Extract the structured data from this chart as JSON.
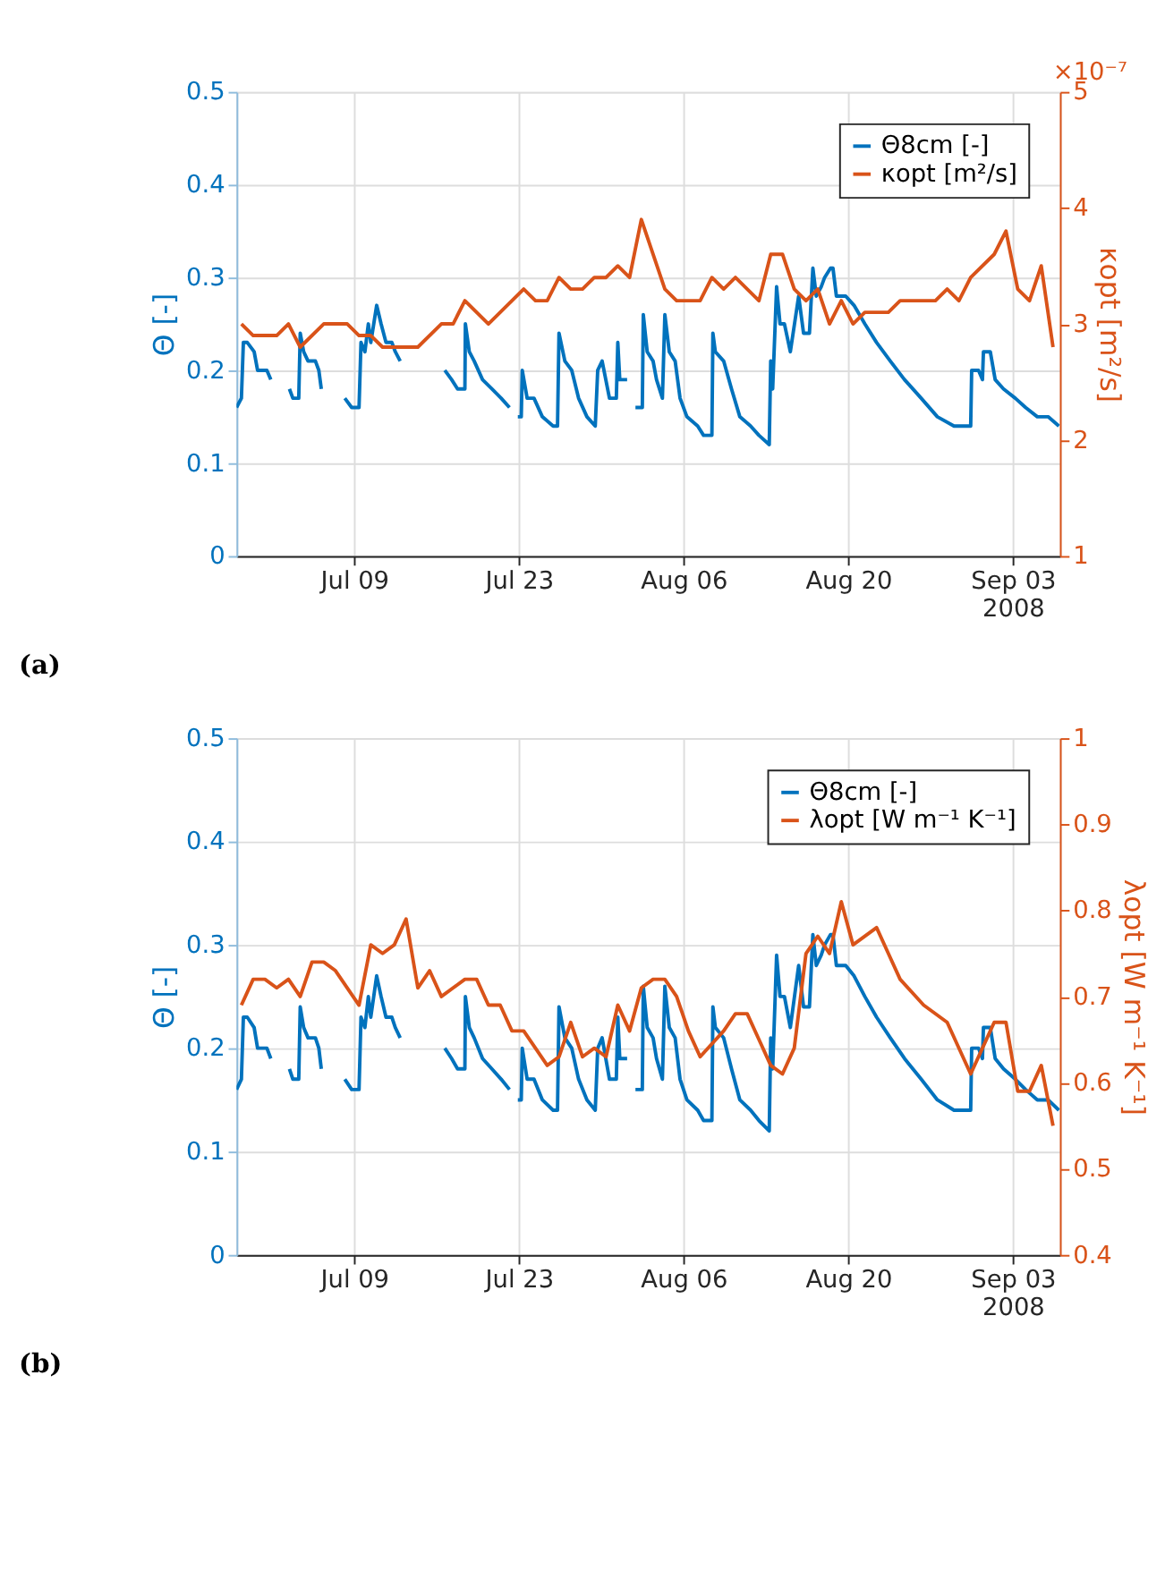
{
  "chart_data": [
    {
      "type": "line",
      "title": "(a)",
      "ylabel": "Θ [-]",
      "y2label": "κopt [m²/s]",
      "annotations": [
        "×10⁻⁷"
      ],
      "xlim": [
        "2008-06-29",
        "2008-09-07"
      ],
      "xticks": [
        {
          "value": "2008-07-09",
          "label": "Jul 09"
        },
        {
          "value": "2008-07-23",
          "label": "Jul 23"
        },
        {
          "value": "2008-08-06",
          "label": "Aug 06"
        },
        {
          "value": "2008-08-20",
          "label": "Aug 20"
        },
        {
          "value": "2008-09-03",
          "label": "Sep 03\n2008"
        }
      ],
      "ylim": [
        0,
        0.5
      ],
      "yticks": [
        0,
        0.1,
        0.2,
        0.3,
        0.4,
        0.5
      ],
      "y2lim": [
        1,
        5
      ],
      "y2ticks": [
        1,
        2,
        3,
        4,
        5
      ],
      "grid": true,
      "legend": "top right",
      "series": [
        {
          "name": "Θ8cm [-]",
          "color": "#0072bd",
          "x": [
            "2008-06-29T00:00",
            "2008-06-29T10:00",
            "2008-06-29T14:00",
            "2008-06-29T22:00",
            "2008-06-30T12:00",
            "2008-06-30T19:00",
            "2008-07-01T14:00",
            "2008-07-01T22:00",
            "2008-07-02T12:00",
            "2008-07-03T12:00",
            "2008-07-03T19:00",
            "2008-07-04T07:00",
            "2008-07-04T10:00",
            "2008-07-04T17:00",
            "2008-07-05T02:00",
            "2008-07-05T17:00",
            "2008-07-06T00:00",
            "2008-07-06T05:00",
            "2008-07-07T00:00",
            "2008-07-08T05:00",
            "2008-07-08T19:00",
            "2008-07-09T10:00",
            "2008-07-09T14:00",
            "2008-07-09T22:00",
            "2008-07-10T05:00",
            "2008-07-10T10:00",
            "2008-07-10T22:00",
            "2008-07-11T07:00",
            "2008-07-11T17:00",
            "2008-07-12T05:00",
            "2008-07-12T12:00",
            "2008-07-12T22:00",
            "2008-07-14T00:00",
            "2008-07-16T17:00",
            "2008-07-17T07:00",
            "2008-07-17T19:00",
            "2008-07-18T10:00",
            "2008-07-18T11:00",
            "2008-07-18T19:00",
            "2008-07-19T05:00",
            "2008-07-19T22:00",
            "2008-07-20T17:00",
            "2008-07-21T12:00",
            "2008-07-22T05:00",
            "2008-07-22T12:00",
            "2008-07-22T22:00",
            "2008-07-23T05:00",
            "2008-07-23T07:00",
            "2008-07-23T17:00",
            "2008-07-24T07:00",
            "2008-07-25T00:00",
            "2008-07-25T22:00",
            "2008-07-26T07:00",
            "2008-07-26T10:00",
            "2008-07-26T22:00",
            "2008-07-27T12:00",
            "2008-07-28T02:00",
            "2008-07-28T19:00",
            "2008-07-29T12:00",
            "2008-07-29T17:00",
            "2008-07-30T02:00",
            "2008-07-30T17:00",
            "2008-07-31T07:00",
            "2008-07-31T10:00",
            "2008-07-31T14:00",
            "2008-08-01T05:00",
            "2008-08-01T12:00",
            "2008-08-01T22:00",
            "2008-08-02T12:00",
            "2008-08-02T14:00",
            "2008-08-02T22:00",
            "2008-08-03T10:00",
            "2008-08-03T17:00",
            "2008-08-04T05:00",
            "2008-08-04T10:00",
            "2008-08-04T19:00",
            "2008-08-05T07:00",
            "2008-08-05T17:00",
            "2008-08-06T07:00",
            "2008-08-07T05:00",
            "2008-08-07T17:00",
            "2008-08-08T10:00",
            "2008-08-08T12:00",
            "2008-08-08T17:00",
            "2008-08-09T10:00",
            "2008-08-10T02:00",
            "2008-08-10T19:00",
            "2008-08-11T17:00",
            "2008-08-12T10:00",
            "2008-08-13T07:00",
            "2008-08-13T10:00",
            "2008-08-13T14:00",
            "2008-08-13T22:00",
            "2008-08-14T05:00",
            "2008-08-14T14:00",
            "2008-08-15T02:00",
            "2008-08-15T19:00",
            "2008-08-16T05:00",
            "2008-08-16T17:00",
            "2008-08-17T00:00",
            "2008-08-17T07:00",
            "2008-08-17T17:00",
            "2008-08-18T00:00",
            "2008-08-18T12:00",
            "2008-08-18T17:00",
            "2008-08-19T00:00",
            "2008-08-19T19:00",
            "2008-08-20T12:00",
            "2008-08-21T10:00",
            "2008-08-22T10:00",
            "2008-08-23T14:00",
            "2008-08-24T19:00",
            "2008-08-26T05:00",
            "2008-08-27T14:00",
            "2008-08-29T00:00",
            "2008-08-30T10:00",
            "2008-08-30T12:00",
            "2008-08-31T02:00",
            "2008-08-31T10:00",
            "2008-08-31T12:00",
            "2008-09-01T02:00",
            "2008-09-01T12:00",
            "2008-09-02T05:00",
            "2008-09-03T05:00",
            "2008-09-04T02:00",
            "2008-09-05T02:00",
            "2008-09-06T00:00",
            "2008-09-06T22:00"
          ],
          "values": [
            0.16,
            0.17,
            0.23,
            0.23,
            0.22,
            0.2,
            0.2,
            0.19,
            null,
            0.18,
            0.17,
            0.17,
            0.24,
            0.22,
            0.21,
            0.21,
            0.2,
            0.18,
            null,
            0.17,
            0.16,
            0.16,
            0.23,
            0.22,
            0.25,
            0.23,
            0.27,
            0.25,
            0.23,
            0.23,
            0.22,
            0.21,
            null,
            0.2,
            0.19,
            0.18,
            0.18,
            0.25,
            0.22,
            0.21,
            0.19,
            0.18,
            0.17,
            0.16,
            null,
            0.15,
            0.15,
            0.2,
            0.17,
            0.17,
            0.15,
            0.14,
            0.14,
            0.24,
            0.21,
            0.2,
            0.17,
            0.15,
            0.14,
            0.2,
            0.21,
            0.17,
            0.17,
            0.23,
            0.19,
            0.19,
            null,
            0.16,
            0.16,
            0.26,
            0.22,
            0.21,
            0.19,
            0.17,
            0.26,
            0.22,
            0.21,
            0.17,
            0.15,
            0.14,
            0.13,
            0.13,
            0.24,
            0.22,
            0.21,
            0.18,
            0.15,
            0.14,
            0.13,
            0.12,
            0.21,
            0.18,
            0.29,
            0.25,
            0.25,
            0.22,
            0.28,
            0.24,
            0.24,
            0.31,
            0.28,
            0.29,
            0.3,
            0.31,
            0.31,
            0.28,
            0.28,
            0.27,
            0.25,
            0.23,
            0.21,
            0.19,
            0.17,
            0.15,
            0.14,
            0.14,
            0.2,
            0.2,
            0.19,
            0.22,
            0.22,
            0.19,
            0.18,
            0.17,
            0.16,
            0.15,
            0.15,
            0.14
          ]
        },
        {
          "name": "κopt [m²/s]",
          "color": "#d95319",
          "axis": "y2",
          "x": [
            "2008-06-29T10:00",
            "2008-06-30T10:00",
            "2008-07-02T10:00",
            "2008-07-03T10:00",
            "2008-07-04T10:00",
            "2008-07-06T10:00",
            "2008-07-08T10:00",
            "2008-07-09T10:00",
            "2008-07-10T10:00",
            "2008-07-11T10:00",
            "2008-07-14T10:00",
            "2008-07-16T10:00",
            "2008-07-17T10:00",
            "2008-07-18T10:00",
            "2008-07-20T10:00",
            "2008-07-23T10:00",
            "2008-07-24T10:00",
            "2008-07-25T10:00",
            "2008-07-26T10:00",
            "2008-07-27T10:00",
            "2008-07-28T10:00",
            "2008-07-29T10:00",
            "2008-07-30T10:00",
            "2008-07-31T10:00",
            "2008-08-01T10:00",
            "2008-08-02T10:00",
            "2008-08-04T10:00",
            "2008-08-05T10:00",
            "2008-08-07T10:00",
            "2008-08-08T10:00",
            "2008-08-09T10:00",
            "2008-08-10T10:00",
            "2008-08-12T10:00",
            "2008-08-13T10:00",
            "2008-08-14T10:00",
            "2008-08-15T10:00",
            "2008-08-16T10:00",
            "2008-08-17T10:00",
            "2008-08-18T10:00",
            "2008-08-19T10:00",
            "2008-08-20T10:00",
            "2008-08-21T10:00",
            "2008-08-23T10:00",
            "2008-08-24T10:00",
            "2008-08-27T10:00",
            "2008-08-28T10:00",
            "2008-08-29T10:00",
            "2008-08-30T10:00",
            "2008-09-01T10:00",
            "2008-09-02T10:00",
            "2008-09-03T10:00",
            "2008-09-04T10:00",
            "2008-09-05T10:00",
            "2008-09-06T10:00"
          ],
          "values": [
            3.0,
            2.9,
            2.9,
            3.0,
            2.8,
            3.0,
            3.0,
            2.9,
            2.9,
            2.8,
            2.8,
            3.0,
            3.0,
            3.2,
            3.0,
            3.3,
            3.2,
            3.2,
            3.4,
            3.3,
            3.3,
            3.4,
            3.4,
            3.5,
            3.4,
            3.9,
            3.3,
            3.2,
            3.2,
            3.4,
            3.3,
            3.4,
            3.2,
            3.6,
            3.6,
            3.3,
            3.2,
            3.3,
            3.0,
            3.2,
            3.0,
            3.1,
            3.1,
            3.2,
            3.2,
            3.3,
            3.2,
            3.4,
            3.6,
            3.8,
            3.3,
            3.2,
            3.5,
            2.8
          ]
        }
      ]
    },
    {
      "type": "line",
      "title": "(b)",
      "ylabel": "Θ [-]",
      "y2label": "λopt [W m⁻¹ K⁻¹]",
      "xlim": [
        "2008-06-29",
        "2008-09-07"
      ],
      "xticks": [
        {
          "value": "2008-07-09",
          "label": "Jul 09"
        },
        {
          "value": "2008-07-23",
          "label": "Jul 23"
        },
        {
          "value": "2008-08-06",
          "label": "Aug 06"
        },
        {
          "value": "2008-08-20",
          "label": "Aug 20"
        },
        {
          "value": "2008-09-03",
          "label": "Sep 03\n2008"
        }
      ],
      "ylim": [
        0,
        0.5
      ],
      "yticks": [
        0,
        0.1,
        0.2,
        0.3,
        0.4,
        0.5
      ],
      "y2lim": [
        0.4,
        1
      ],
      "y2ticks": [
        0.4,
        0.5,
        0.6,
        0.7,
        0.8,
        0.9,
        1
      ],
      "grid": true,
      "legend": "top right",
      "series": [
        {
          "name": "Θ8cm [-]",
          "color": "#0072bd",
          "x": [
            "2008-06-29T00:00",
            "2008-06-29T10:00",
            "2008-06-29T14:00",
            "2008-06-29T22:00",
            "2008-06-30T12:00",
            "2008-06-30T19:00",
            "2008-07-01T14:00",
            "2008-07-01T22:00",
            "2008-07-02T12:00",
            "2008-07-03T12:00",
            "2008-07-03T19:00",
            "2008-07-04T07:00",
            "2008-07-04T10:00",
            "2008-07-04T17:00",
            "2008-07-05T02:00",
            "2008-07-05T17:00",
            "2008-07-06T00:00",
            "2008-07-06T05:00",
            "2008-07-07T00:00",
            "2008-07-08T05:00",
            "2008-07-08T19:00",
            "2008-07-09T10:00",
            "2008-07-09T14:00",
            "2008-07-09T22:00",
            "2008-07-10T05:00",
            "2008-07-10T10:00",
            "2008-07-10T22:00",
            "2008-07-11T07:00",
            "2008-07-11T17:00",
            "2008-07-12T05:00",
            "2008-07-12T12:00",
            "2008-07-12T22:00",
            "2008-07-14T00:00",
            "2008-07-16T17:00",
            "2008-07-17T07:00",
            "2008-07-17T19:00",
            "2008-07-18T10:00",
            "2008-07-18T11:00",
            "2008-07-18T19:00",
            "2008-07-19T05:00",
            "2008-07-19T22:00",
            "2008-07-20T17:00",
            "2008-07-21T12:00",
            "2008-07-22T05:00",
            "2008-07-22T12:00",
            "2008-07-22T22:00",
            "2008-07-23T05:00",
            "2008-07-23T07:00",
            "2008-07-23T17:00",
            "2008-07-24T07:00",
            "2008-07-25T00:00",
            "2008-07-25T22:00",
            "2008-07-26T07:00",
            "2008-07-26T10:00",
            "2008-07-26T22:00",
            "2008-07-27T12:00",
            "2008-07-28T02:00",
            "2008-07-28T19:00",
            "2008-07-29T12:00",
            "2008-07-29T17:00",
            "2008-07-30T02:00",
            "2008-07-30T17:00",
            "2008-07-31T07:00",
            "2008-07-31T10:00",
            "2008-07-31T14:00",
            "2008-08-01T05:00",
            "2008-08-01T12:00",
            "2008-08-01T22:00",
            "2008-08-02T12:00",
            "2008-08-02T14:00",
            "2008-08-02T22:00",
            "2008-08-03T10:00",
            "2008-08-03T17:00",
            "2008-08-04T05:00",
            "2008-08-04T10:00",
            "2008-08-04T19:00",
            "2008-08-05T07:00",
            "2008-08-05T17:00",
            "2008-08-06T07:00",
            "2008-08-07T05:00",
            "2008-08-07T17:00",
            "2008-08-08T10:00",
            "2008-08-08T12:00",
            "2008-08-08T17:00",
            "2008-08-09T10:00",
            "2008-08-10T02:00",
            "2008-08-10T19:00",
            "2008-08-11T17:00",
            "2008-08-12T10:00",
            "2008-08-13T07:00",
            "2008-08-13T10:00",
            "2008-08-13T14:00",
            "2008-08-13T22:00",
            "2008-08-14T05:00",
            "2008-08-14T14:00",
            "2008-08-15T02:00",
            "2008-08-15T19:00",
            "2008-08-16T05:00",
            "2008-08-16T17:00",
            "2008-08-17T00:00",
            "2008-08-17T07:00",
            "2008-08-17T17:00",
            "2008-08-18T00:00",
            "2008-08-18T12:00",
            "2008-08-18T17:00",
            "2008-08-19T00:00",
            "2008-08-19T19:00",
            "2008-08-20T12:00",
            "2008-08-21T10:00",
            "2008-08-22T10:00",
            "2008-08-23T14:00",
            "2008-08-24T19:00",
            "2008-08-26T05:00",
            "2008-08-27T14:00",
            "2008-08-29T00:00",
            "2008-08-30T10:00",
            "2008-08-30T12:00",
            "2008-08-31T02:00",
            "2008-08-31T10:00",
            "2008-08-31T12:00",
            "2008-09-01T02:00",
            "2008-09-01T12:00",
            "2008-09-02T05:00",
            "2008-09-03T05:00",
            "2008-09-04T02:00",
            "2008-09-05T02:00",
            "2008-09-06T00:00",
            "2008-09-06T22:00"
          ],
          "values": [
            0.16,
            0.17,
            0.23,
            0.23,
            0.22,
            0.2,
            0.2,
            0.19,
            null,
            0.18,
            0.17,
            0.17,
            0.24,
            0.22,
            0.21,
            0.21,
            0.2,
            0.18,
            null,
            0.17,
            0.16,
            0.16,
            0.23,
            0.22,
            0.25,
            0.23,
            0.27,
            0.25,
            0.23,
            0.23,
            0.22,
            0.21,
            null,
            0.2,
            0.19,
            0.18,
            0.18,
            0.25,
            0.22,
            0.21,
            0.19,
            0.18,
            0.17,
            0.16,
            null,
            0.15,
            0.15,
            0.2,
            0.17,
            0.17,
            0.15,
            0.14,
            0.14,
            0.24,
            0.21,
            0.2,
            0.17,
            0.15,
            0.14,
            0.2,
            0.21,
            0.17,
            0.17,
            0.23,
            0.19,
            0.19,
            null,
            0.16,
            0.16,
            0.26,
            0.22,
            0.21,
            0.19,
            0.17,
            0.26,
            0.22,
            0.21,
            0.17,
            0.15,
            0.14,
            0.13,
            0.13,
            0.24,
            0.22,
            0.21,
            0.18,
            0.15,
            0.14,
            0.13,
            0.12,
            0.21,
            0.18,
            0.29,
            0.25,
            0.25,
            0.22,
            0.28,
            0.24,
            0.24,
            0.31,
            0.28,
            0.29,
            0.3,
            0.31,
            0.31,
            0.28,
            0.28,
            0.27,
            0.25,
            0.23,
            0.21,
            0.19,
            0.17,
            0.15,
            0.14,
            0.14,
            0.2,
            0.2,
            0.19,
            0.22,
            0.22,
            0.19,
            0.18,
            0.17,
            0.16,
            0.15,
            0.15,
            0.14
          ]
        },
        {
          "name": "λopt [W m⁻¹ K⁻¹]",
          "color": "#d95319",
          "axis": "y2",
          "x": [
            "2008-06-29T10:00",
            "2008-06-30T10:00",
            "2008-07-01T10:00",
            "2008-07-02T10:00",
            "2008-07-03T10:00",
            "2008-07-04T10:00",
            "2008-07-05T10:00",
            "2008-07-06T10:00",
            "2008-07-07T10:00",
            "2008-07-09T10:00",
            "2008-07-10T10:00",
            "2008-07-11T10:00",
            "2008-07-12T10:00",
            "2008-07-13T10:00",
            "2008-07-14T10:00",
            "2008-07-15T10:00",
            "2008-07-16T10:00",
            "2008-07-18T10:00",
            "2008-07-19T10:00",
            "2008-07-20T10:00",
            "2008-07-21T10:00",
            "2008-07-22T10:00",
            "2008-07-23T10:00",
            "2008-07-25T10:00",
            "2008-07-26T10:00",
            "2008-07-27T10:00",
            "2008-07-28T10:00",
            "2008-07-29T10:00",
            "2008-07-30T10:00",
            "2008-07-31T10:00",
            "2008-08-01T10:00",
            "2008-08-02T10:00",
            "2008-08-03T10:00",
            "2008-08-04T10:00",
            "2008-08-05T10:00",
            "2008-08-06T10:00",
            "2008-08-07T10:00",
            "2008-08-09T10:00",
            "2008-08-10T10:00",
            "2008-08-11T10:00",
            "2008-08-12T10:00",
            "2008-08-13T10:00",
            "2008-08-14T10:00",
            "2008-08-15T10:00",
            "2008-08-16T10:00",
            "2008-08-17T10:00",
            "2008-08-18T10:00",
            "2008-08-19T10:00",
            "2008-08-20T10:00",
            "2008-08-22T10:00",
            "2008-08-23T10:00",
            "2008-08-24T10:00",
            "2008-08-26T10:00",
            "2008-08-28T10:00",
            "2008-08-30T10:00",
            "2008-08-31T10:00",
            "2008-09-01T10:00",
            "2008-09-02T10:00",
            "2008-09-03T10:00",
            "2008-09-04T10:00",
            "2008-09-05T10:00",
            "2008-09-06T10:00"
          ],
          "values": [
            0.69,
            0.72,
            0.72,
            0.71,
            0.72,
            0.7,
            0.74,
            0.74,
            0.73,
            0.69,
            0.76,
            0.75,
            0.76,
            0.79,
            0.71,
            0.73,
            0.7,
            0.72,
            0.72,
            0.69,
            0.69,
            0.66,
            0.66,
            0.62,
            0.63,
            0.67,
            0.63,
            0.64,
            0.63,
            0.69,
            0.66,
            0.71,
            0.72,
            0.72,
            0.7,
            0.66,
            0.63,
            0.66,
            0.68,
            0.68,
            0.65,
            0.62,
            0.61,
            0.64,
            0.75,
            0.77,
            0.75,
            0.81,
            0.76,
            0.78,
            0.75,
            0.72,
            0.69,
            0.67,
            0.61,
            0.64,
            0.67,
            0.67,
            0.59,
            0.59,
            0.62,
            0.55
          ]
        }
      ]
    }
  ]
}
